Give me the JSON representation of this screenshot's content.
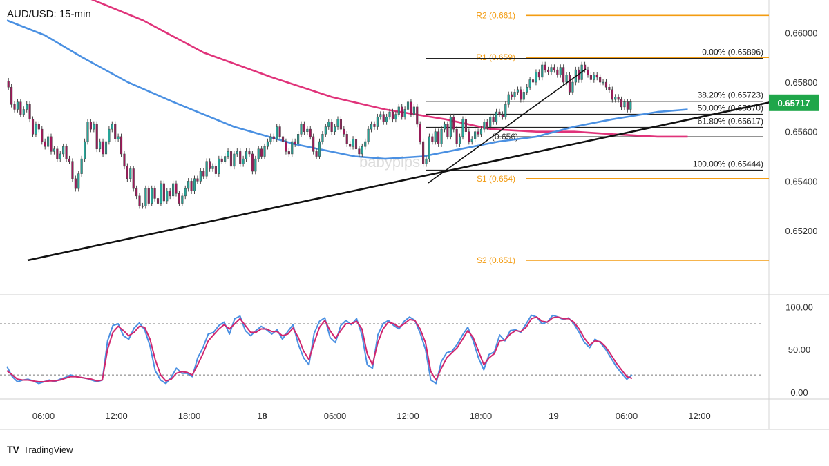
{
  "title": "AUD/USD: 15-min",
  "watermark": "babypips",
  "brand": {
    "name": "TradingView",
    "logo": "TV"
  },
  "colors": {
    "up": "#26a69a",
    "down": "#a0185a",
    "wick": "#444444",
    "ma_fast": "#4a90e2",
    "ma_slow": "#e0337a",
    "pivot": "#f39c12",
    "fib": "#222222",
    "trend": "#111111",
    "price_tag": "#1fa64a",
    "stoch_k": "#4a90e2",
    "stoch_d": "#d0266e"
  },
  "chart_data": {
    "type": "candlestick",
    "symbol": "AUD/USD",
    "timeframe": "15-min",
    "ylim": [
      0.6496,
      0.6611
    ],
    "y_ticks": [
      "0.66000",
      "0.65800",
      "0.65600",
      "0.65400",
      "0.65200"
    ],
    "x_ticks": [
      "06:00",
      "12:00",
      "18:00",
      "18",
      "06:00",
      "12:00",
      "18:00",
      "19",
      "06:00",
      "12:00"
    ],
    "last_price": "0.65717",
    "pivots": [
      {
        "label": "R2 (0.661)",
        "value": 0.6607
      },
      {
        "label": "R1 (0.659)",
        "value": 0.659
      },
      {
        "label": "S1 (0.654)",
        "value": 0.6541
      },
      {
        "label": "S2 (0.651)",
        "value": 0.6508
      }
    ],
    "fib_levels": [
      {
        "label": "0.00% (0.65896)",
        "value": 0.65896
      },
      {
        "label": "38.20% (0.65723)",
        "value": 0.65723
      },
      {
        "label": "50.00% (0.65670)",
        "value": 0.6567
      },
      {
        "label": "61.80% (0.65617)",
        "value": 0.65617
      },
      {
        "label": "100.00% (0.65444)",
        "value": 0.65444
      }
    ],
    "extra_level": {
      "label": "(0.656)",
      "value": 0.6558
    },
    "candles_close": [
      0.6578,
      0.6571,
      0.6569,
      0.6572,
      0.6567,
      0.6569,
      0.6571,
      0.6565,
      0.6559,
      0.6563,
      0.6561,
      0.6556,
      0.6554,
      0.6558,
      0.6552,
      0.6553,
      0.6549,
      0.6551,
      0.6554,
      0.6549,
      0.6548,
      0.6541,
      0.6537,
      0.6543,
      0.6549,
      0.6556,
      0.6564,
      0.6561,
      0.6563,
      0.6553,
      0.6556,
      0.6551,
      0.6556,
      0.6561,
      0.6563,
      0.6557,
      0.6558,
      0.6551,
      0.6546,
      0.6541,
      0.6545,
      0.6537,
      0.6534,
      0.653,
      0.653,
      0.6537,
      0.6531,
      0.6537,
      0.6533,
      0.6531,
      0.6539,
      0.6532,
      0.6536,
      0.6534,
      0.6539,
      0.6535,
      0.6531,
      0.6534,
      0.6537,
      0.654,
      0.6536,
      0.6541,
      0.654,
      0.6544,
      0.6542,
      0.6548,
      0.6545,
      0.6546,
      0.6543,
      0.6549,
      0.6548,
      0.655,
      0.6552,
      0.6546,
      0.6551,
      0.6552,
      0.6547,
      0.6549,
      0.6552,
      0.6551,
      0.6544,
      0.6549,
      0.6553,
      0.655,
      0.6554,
      0.6556,
      0.6558,
      0.6557,
      0.6562,
      0.6558,
      0.6556,
      0.6552,
      0.6551,
      0.6556,
      0.6555,
      0.6559,
      0.6563,
      0.656,
      0.6561,
      0.6558,
      0.6552,
      0.655,
      0.6556,
      0.6559,
      0.6562,
      0.6564,
      0.656,
      0.6562,
      0.6565,
      0.6561,
      0.6559,
      0.6555,
      0.6554,
      0.6557,
      0.6553,
      0.6551,
      0.6554,
      0.6556,
      0.6561,
      0.6563,
      0.6562,
      0.6566,
      0.6567,
      0.6564,
      0.6566,
      0.6568,
      0.6565,
      0.6567,
      0.657,
      0.6566,
      0.6569,
      0.6572,
      0.6567,
      0.657,
      0.6563,
      0.6556,
      0.6547,
      0.6549,
      0.6558,
      0.6556,
      0.656,
      0.6555,
      0.6561,
      0.6563,
      0.6558,
      0.6566,
      0.6561,
      0.6555,
      0.6558,
      0.6565,
      0.656,
      0.6556,
      0.6557,
      0.656,
      0.6559,
      0.6561,
      0.6564,
      0.6562,
      0.6566,
      0.6564,
      0.6568,
      0.6567,
      0.6566,
      0.6571,
      0.6575,
      0.6574,
      0.6576,
      0.6577,
      0.6573,
      0.6576,
      0.6578,
      0.6581,
      0.658,
      0.6584,
      0.6582,
      0.6587,
      0.6585,
      0.6584,
      0.6586,
      0.6585,
      0.6583,
      0.6586,
      0.658,
      0.6583,
      0.6576,
      0.658,
      0.6585,
      0.6581,
      0.6587,
      0.6585,
      0.6583,
      0.6581,
      0.6583,
      0.6582,
      0.658,
      0.658,
      0.6578,
      0.6577,
      0.6573,
      0.6574,
      0.6573,
      0.657,
      0.6572,
      0.6569,
      0.6572
    ],
    "ma_fast": [
      [
        0.0,
        0.6605
      ],
      [
        0.05,
        0.6599
      ],
      [
        0.1,
        0.659
      ],
      [
        0.16,
        0.658
      ],
      [
        0.22,
        0.6572
      ],
      [
        0.3,
        0.6562
      ],
      [
        0.38,
        0.6555
      ],
      [
        0.46,
        0.655
      ],
      [
        0.5,
        0.6549
      ],
      [
        0.55,
        0.655
      ],
      [
        0.6,
        0.6553
      ],
      [
        0.65,
        0.6556
      ],
      [
        0.7,
        0.6558
      ],
      [
        0.75,
        0.6562
      ],
      [
        0.8,
        0.6565
      ],
      [
        0.86,
        0.6568
      ],
      [
        0.9,
        0.6569
      ]
    ],
    "ma_slow": [
      [
        0.1,
        0.6615
      ],
      [
        0.18,
        0.6605
      ],
      [
        0.26,
        0.6592
      ],
      [
        0.35,
        0.6582
      ],
      [
        0.43,
        0.6574
      ],
      [
        0.5,
        0.6569
      ],
      [
        0.58,
        0.6565
      ],
      [
        0.64,
        0.6561
      ],
      [
        0.7,
        0.656
      ],
      [
        0.75,
        0.656
      ],
      [
        0.8,
        0.6559
      ],
      [
        0.86,
        0.6558
      ],
      [
        0.9,
        0.6558
      ]
    ],
    "stochastic": {
      "ylim": [
        -5,
        110
      ],
      "y_ticks": [
        "100.00",
        "50.00",
        "0.00"
      ],
      "levels": [
        80,
        20
      ],
      "k": [
        30,
        18,
        12,
        14,
        15,
        13,
        10,
        12,
        14,
        12,
        15,
        17,
        20,
        18,
        17,
        16,
        14,
        12,
        14,
        60,
        78,
        80,
        66,
        62,
        75,
        81,
        73,
        54,
        25,
        14,
        10,
        17,
        28,
        22,
        22,
        18,
        40,
        52,
        68,
        70,
        78,
        82,
        68,
        86,
        89,
        72,
        66,
        72,
        77,
        73,
        68,
        73,
        62,
        71,
        79,
        56,
        40,
        32,
        69,
        83,
        87,
        64,
        58,
        78,
        84,
        79,
        86,
        67,
        32,
        28,
        67,
        80,
        84,
        78,
        74,
        83,
        88,
        84,
        69,
        50,
        14,
        10,
        36,
        46,
        48,
        56,
        67,
        76,
        60,
        40,
        26,
        44,
        47,
        67,
        60,
        72,
        73,
        70,
        80,
        90,
        88,
        80,
        82,
        90,
        88,
        85,
        87,
        80,
        70,
        58,
        52,
        62,
        58,
        50,
        40,
        30,
        22,
        15,
        20
      ],
      "d": [
        25,
        20,
        15,
        14,
        14,
        13,
        12,
        12,
        13,
        13,
        14,
        16,
        18,
        18,
        17,
        16,
        15,
        13,
        14,
        50,
        70,
        77,
        72,
        66,
        70,
        77,
        76,
        62,
        38,
        20,
        13,
        15,
        22,
        24,
        23,
        20,
        32,
        45,
        60,
        67,
        74,
        79,
        74,
        80,
        86,
        78,
        70,
        70,
        74,
        74,
        71,
        71,
        66,
        68,
        75,
        64,
        48,
        38,
        58,
        76,
        84,
        72,
        63,
        72,
        80,
        80,
        83,
        74,
        45,
        32,
        58,
        74,
        82,
        80,
        76,
        80,
        85,
        84,
        74,
        58,
        24,
        14,
        28,
        40,
        46,
        52,
        62,
        72,
        64,
        48,
        32,
        40,
        45,
        60,
        61,
        68,
        72,
        71,
        76,
        86,
        88,
        83,
        82,
        87,
        88,
        86,
        86,
        82,
        74,
        63,
        55,
        60,
        59,
        53,
        44,
        34,
        26,
        18,
        16
      ]
    }
  }
}
